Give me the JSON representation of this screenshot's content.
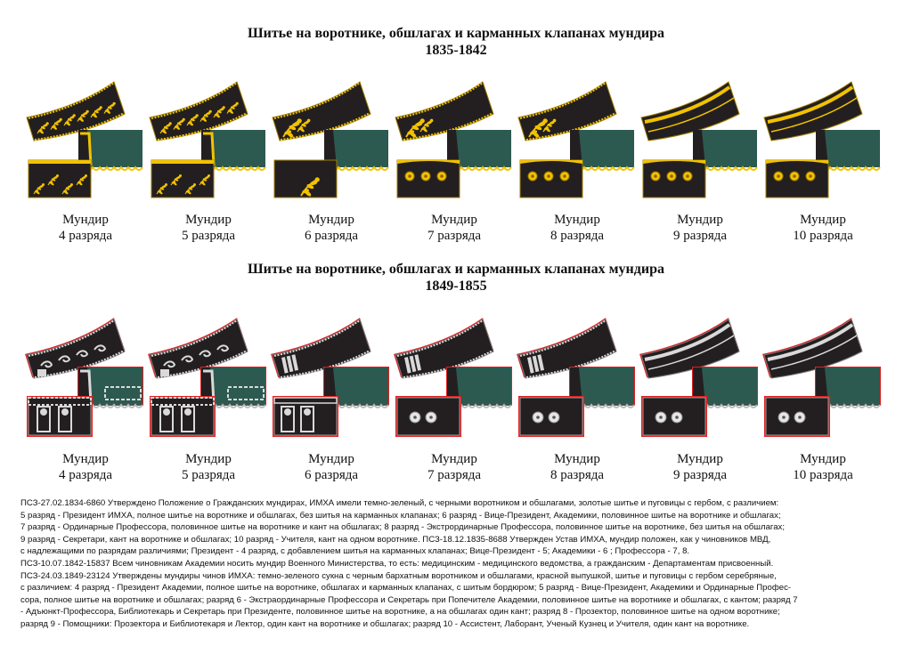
{
  "sections": [
    {
      "title_line1": "Шитье на воротнике, обшлагах и карманных клапанах мундира",
      "title_line2": "1835-1842",
      "colors": {
        "embroidery": "#f2c200",
        "dark": "#231f20",
        "cloth": "#2d5a50"
      },
      "items": [
        {
          "label": "Мундир",
          "rank": "4 разряда",
          "style": "full-embroidery"
        },
        {
          "label": "Мундир",
          "rank": "5 разряда",
          "style": "full-embroidery"
        },
        {
          "label": "Мундир",
          "rank": "6 разряда",
          "style": "half-embroidery-pocket"
        },
        {
          "label": "Мундир",
          "rank": "7 разряда",
          "style": "half-embroidery-buttons"
        },
        {
          "label": "Мундир",
          "rank": "8 разряда",
          "style": "half-embroidery-plain"
        },
        {
          "label": "Мундир",
          "rank": "9 разряда",
          "style": "piping-collar-cuff"
        },
        {
          "label": "Мундир",
          "rank": "10 разряда",
          "style": "piping-collar"
        }
      ]
    },
    {
      "title_line1": "Шитье на воротнике, обшлагах и карманных клапанах мундира",
      "title_line2": "1849-1855",
      "colors": {
        "embroidery": "#d9d9d9",
        "dark": "#231f20",
        "cloth": "#2d5a50",
        "piping": "#e02020"
      },
      "items": [
        {
          "label": "Мундир",
          "rank": "4 разряда",
          "style": "full-embroidery"
        },
        {
          "label": "Мундир",
          "rank": "5 разряда",
          "style": "full-embroidery"
        },
        {
          "label": "Мундир",
          "rank": "6 разряда",
          "style": "half-embroidery-pocket"
        },
        {
          "label": "Мундир",
          "rank": "7 разряда",
          "style": "half-embroidery-buttons"
        },
        {
          "label": "Мундир",
          "rank": "8 разряда",
          "style": "half-embroidery-plain"
        },
        {
          "label": "Мундир",
          "rank": "9 разряда",
          "style": "piping-collar-cuff"
        },
        {
          "label": "Мундир",
          "rank": "10 разряда",
          "style": "piping-collar"
        }
      ]
    }
  ],
  "notes": [
    "ПСЗ-27.02.1834-6860  Утверждено Положение о Гражданских мундирах, ИМХА имели темно-зеленый, с черными воротником и обшлагами, золотые шитье и пуговицы с гербом, с различием:",
    "5 разряд - Президент ИМХА, полное шитье на воротнике и обшлагах, без шитья на карманных клапанах; 6 разряд - Вице-Президент, Академики, половинное шитье на воротнике и обшлагах;",
    "7 разряд - Ординарные Профессора, половинное шитье на воротнике и кант на обшлагах; 8 разряд - Экстрординарные Профессора, половинное шитье на воротнике, без шитья на обшлагах;",
    "9 разряд - Секретари, кант на воротнике и обшлагах; 10 разряд - Учителя, кант на одном воротнике. ПСЗ-18.12.1835-8688  Утвержден Устав ИМХА, мундир положен, как у чиновников МВД,",
    "с надлежащими по разрядам различиями; Президент - 4 разряд, с добавлением шитья на карманных клапанах; Вице-Президент - 5; Академики - 6 ; Профессора - 7, 8.",
    "ПСЗ-10.07.1842-15837  Всем чиновникам Академии носить мундир Военного Министерства, то есть: медицинским - медицинского ведомства, а гражданским - Департаментам присвоенный.",
    "ПСЗ-24.03.1849-23124  Утверждены мундиры чинов ИМХА: темно-зеленого сукна с черным бархатным воротником и обшлагами, красной выпушкой, шитье и пуговицы с гербом серебряные,",
    "с различием: 4 разряд - Президент Академии, полное шитье на воротнике, обшлагах и карманных клапанах, с шитым бордюром; 5 разряд - Вице-Президент, Академики и Ординарные Профес-",
    "сора, полное шитье на воротнике и обшлагах; разряд 6 - Экстраординарные Профессора и Секретарь при Попечителе Академии, половинное шитье на воротнике и обшлагах, с кантом; разряд 7",
    "- Адъюнкт-Профессора, Библиотекарь и Секретарь при Президенте, половинное шитье на воротнике, а на обшлагах один кант; разряд 8 - Прозектор, половинное шитье на одном воротнике;",
    "разряд 9 - Помощники: Прозектора и Библиотекаря и Лектор, один кант на воротнике и обшлагах; разряд 10 - Ассистент, Лаборант, Ученый Кузнец и Учителя, один кант на воротнике."
  ]
}
